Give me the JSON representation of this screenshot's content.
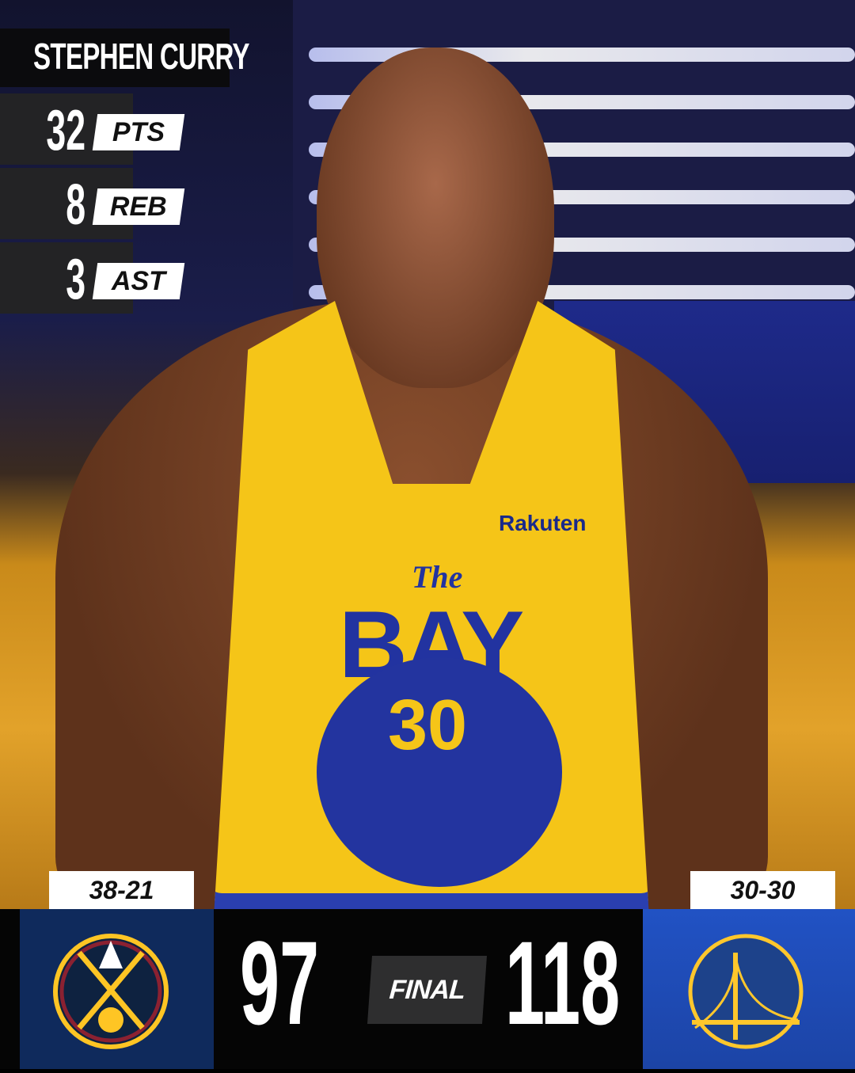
{
  "player": {
    "name": "STEPHEN CURRY"
  },
  "stats": [
    {
      "value": "32",
      "label": "PTS"
    },
    {
      "value": "8",
      "label": "REB"
    },
    {
      "value": "3",
      "label": "AST"
    }
  ],
  "jersey": {
    "sponsor": "Rakuten",
    "script": "The",
    "word": "BAY",
    "number": "30"
  },
  "game": {
    "status": "FINAL",
    "away": {
      "team": "Denver Nuggets",
      "record": "38-21",
      "score": "97",
      "color": "#0e2240",
      "accent": "#fec524"
    },
    "home": {
      "team": "Golden State Warriors",
      "record": "30-30",
      "score": "118",
      "color": "#1d428a",
      "accent": "#ffc72c"
    }
  }
}
